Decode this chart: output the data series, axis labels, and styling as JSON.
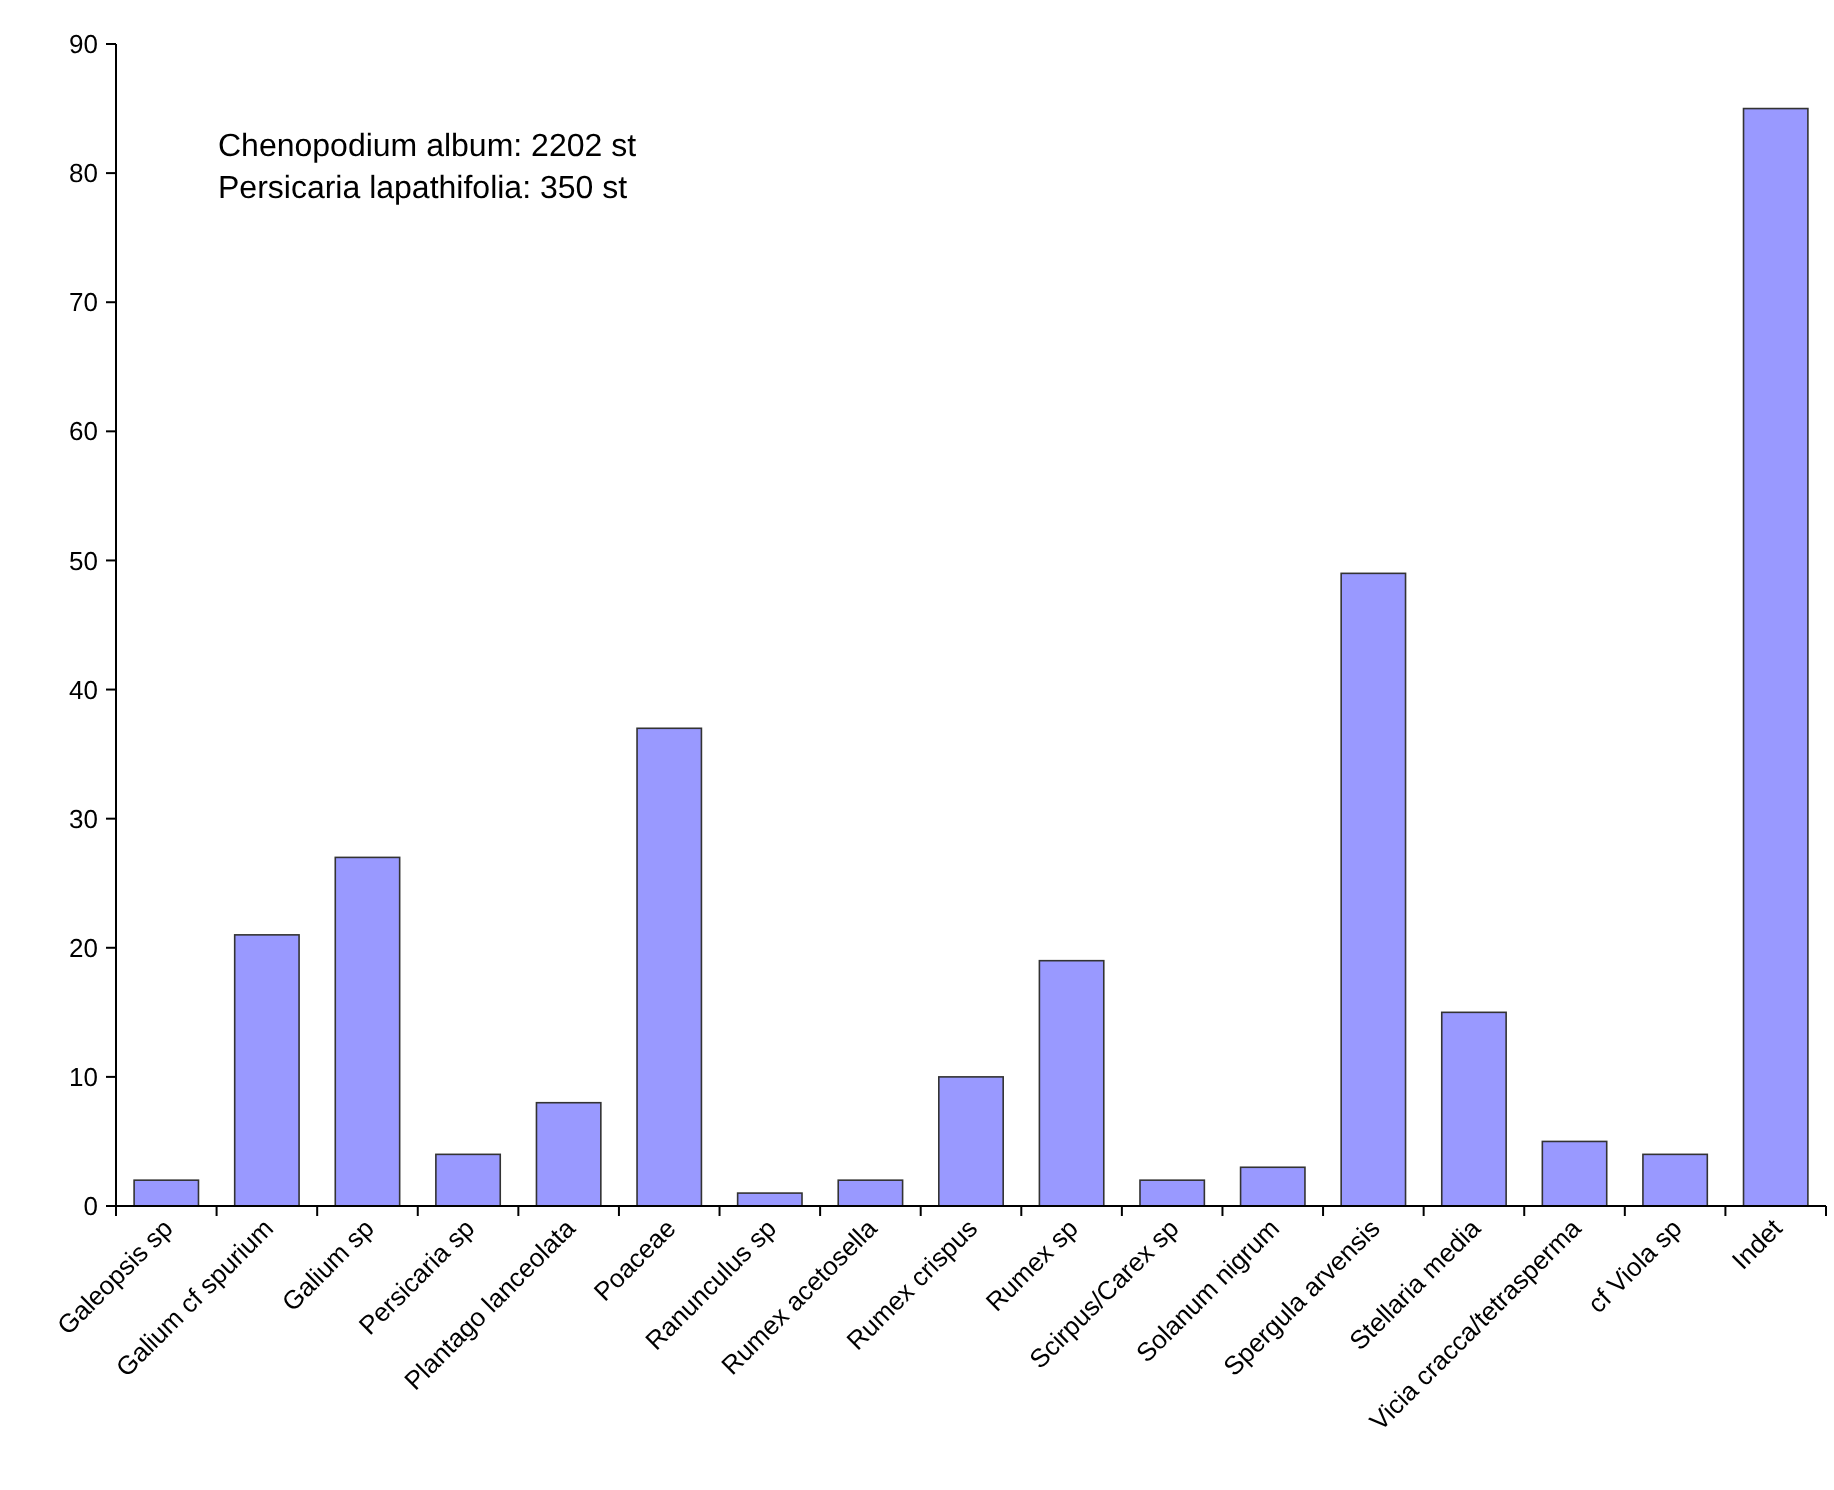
{
  "chart_data": {
    "type": "bar",
    "categories": [
      "Galeopsis sp",
      "Galium cf spurium",
      "Galium sp",
      "Persicaria sp",
      "Plantago lanceolata",
      "Poaceae",
      "Ranunculus sp",
      "Rumex acetosella",
      "Rumex crispus",
      "Rumex sp",
      "Scirpus/Carex sp",
      "Solanum nigrum",
      "Spergula arvensis",
      "Stellaria media",
      "Vicia cracca/tetrasperma",
      "cf Viola sp",
      "Indet"
    ],
    "values": [
      2,
      21,
      27,
      4,
      8,
      37,
      1,
      2,
      10,
      19,
      2,
      3,
      49,
      15,
      5,
      4,
      85
    ],
    "color": "#9999ff",
    "ylim": [
      0,
      90
    ],
    "yticks": [
      0,
      10,
      20,
      30,
      40,
      50,
      60,
      70,
      80,
      90
    ],
    "grid": false,
    "annotations": [
      "Chenopodium album: 2202 st",
      "Persicaria lapathifolia: 350 st"
    ]
  }
}
